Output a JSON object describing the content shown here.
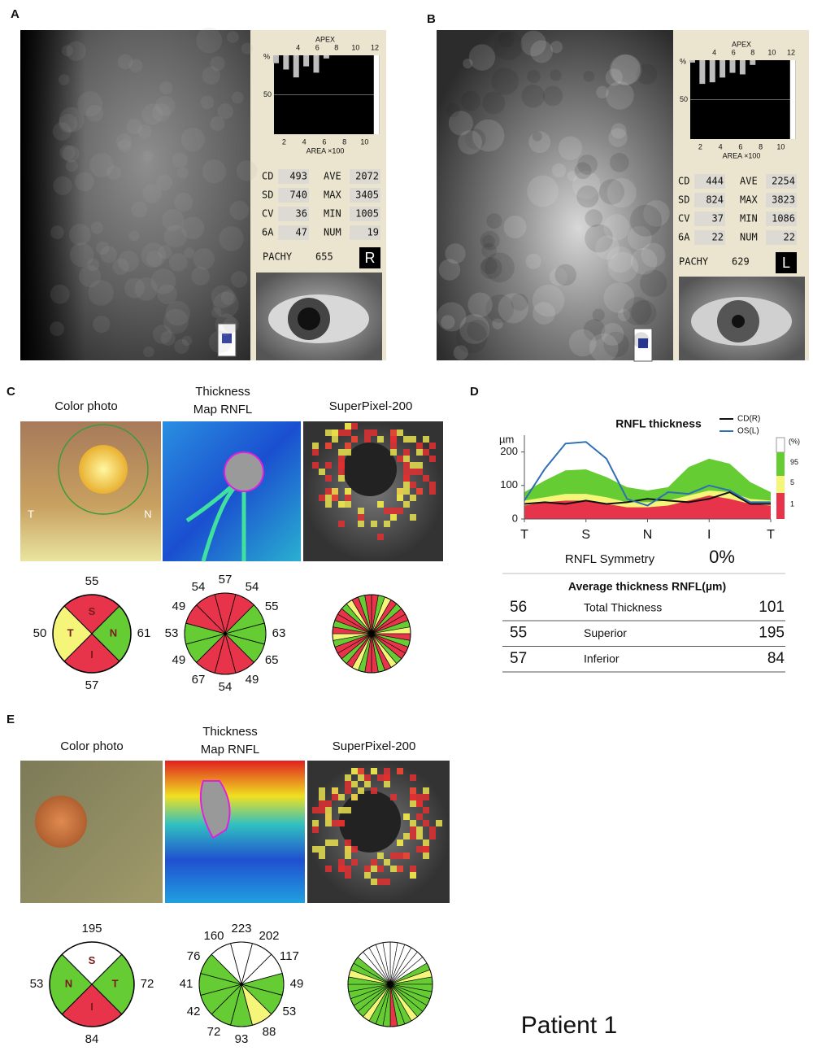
{
  "panel_a": {
    "label": "A",
    "apex": "APEX",
    "unit": "%",
    "top_xlim": [
      2,
      12
    ],
    "top_ticks": [
      4,
      6,
      8,
      10,
      12
    ],
    "bottom_xlim": [
      1,
      11.5
    ],
    "bottom_ticks": [
      2,
      4,
      6,
      8,
      10
    ],
    "area_label": "AREA ×100",
    "ylim": [
      0,
      100
    ],
    "yticks": [
      50
    ],
    "bar_color": "#bdbdbd",
    "bars": [
      10,
      18,
      28,
      14,
      22,
      4,
      0,
      0,
      0,
      0,
      100
    ],
    "stats": [
      {
        "label": "CD",
        "value": 493
      },
      {
        "label": "AVE",
        "value": 2072
      },
      {
        "label": "SD",
        "value": 740
      },
      {
        "label": "MAX",
        "value": 3405
      },
      {
        "label": "CV",
        "value": 36
      },
      {
        "label": "MIN",
        "value": 1005
      },
      {
        "label": "6A",
        "value": 47
      },
      {
        "label": "NUM",
        "value": 19
      }
    ],
    "pachy_label": "PACHY",
    "pachy": 655,
    "eye": "R"
  },
  "panel_b": {
    "label": "B",
    "apex": "APEX",
    "unit": "%",
    "top_xlim": [
      2,
      12
    ],
    "top_ticks": [
      4,
      6,
      8,
      10,
      12
    ],
    "bottom_xlim": [
      1,
      11.5
    ],
    "bottom_ticks": [
      2,
      4,
      6,
      8,
      10
    ],
    "area_label": "AREA ×100",
    "ylim": [
      0,
      100
    ],
    "yticks": [
      50
    ],
    "bar_color": "#bdbdbd",
    "bars": [
      3,
      30,
      28,
      22,
      16,
      18,
      6,
      0,
      0,
      0,
      100
    ],
    "stats": [
      {
        "label": "CD",
        "value": 444
      },
      {
        "label": "AVE",
        "value": 2254
      },
      {
        "label": "SD",
        "value": 824
      },
      {
        "label": "MAX",
        "value": 3823
      },
      {
        "label": "CV",
        "value": 37
      },
      {
        "label": "MIN",
        "value": 1086
      },
      {
        "label": "6A",
        "value": 22
      },
      {
        "label": "NUM",
        "value": 22
      }
    ],
    "pachy_label": "PACHY",
    "pachy": 629,
    "eye": "L"
  },
  "panel_c": {
    "label": "C",
    "headings": [
      "Color photo",
      "Thickness",
      "Map RNFL",
      "SuperPixel-200"
    ],
    "photo_labels": [
      "T",
      "N"
    ],
    "quadrant": [
      {
        "label": "S",
        "value": 55,
        "color": "#e8344b"
      },
      {
        "label": "N",
        "value": 61,
        "color": "#66cc33"
      },
      {
        "label": "I",
        "value": 57,
        "color": "#e8344b"
      },
      {
        "label": "T",
        "value": 50,
        "color": "#f5f57a"
      }
    ],
    "clock": [
      {
        "value": 57,
        "color": "#e8344b"
      },
      {
        "value": 54,
        "color": "#e8344b"
      },
      {
        "value": 55,
        "color": "#66cc33"
      },
      {
        "value": 63,
        "color": "#66cc33"
      },
      {
        "value": 65,
        "color": "#66cc33"
      },
      {
        "value": 49,
        "color": "#e8344b"
      },
      {
        "value": 54,
        "color": "#e8344b"
      },
      {
        "value": 67,
        "color": "#e8344b"
      },
      {
        "value": 49,
        "color": "#66cc33"
      },
      {
        "value": 53,
        "color": "#66cc33"
      },
      {
        "value": 49,
        "color": "#e8344b"
      },
      {
        "value": 54,
        "color": "#e8344b"
      }
    ]
  },
  "panel_d": {
    "label": "D",
    "symmetry_label": "RNFL Symmetry",
    "symmetry": "0%",
    "table_title": "Average thickness RNFL(µm)",
    "rows": [
      [
        56,
        "Total Thickness",
        101
      ],
      [
        55,
        "Superior",
        195
      ],
      [
        57,
        "Inferior",
        84
      ]
    ]
  },
  "chart_data": {
    "type": "line",
    "title": "RNFL thickness",
    "ylabel": "µm",
    "scale_label": "(%)",
    "x": [
      0,
      30,
      60,
      90,
      120,
      150,
      180,
      210,
      240,
      270,
      300,
      330,
      360
    ],
    "xlim": [
      0,
      360
    ],
    "xticks": [
      {
        "value": 0,
        "label": "T"
      },
      {
        "value": 90,
        "label": "S"
      },
      {
        "value": 180,
        "label": "N"
      },
      {
        "value": 270,
        "label": "I"
      },
      {
        "value": 360,
        "label": "T"
      }
    ],
    "ylim": [
      0,
      250
    ],
    "yticks": [
      0,
      100,
      200
    ],
    "series": [
      {
        "name": "95",
        "type": "area",
        "color": "#66cc33",
        "values": [
          80,
          115,
          145,
          148,
          125,
          95,
          85,
          95,
          155,
          180,
          165,
          110,
          80
        ]
      },
      {
        "name": "5",
        "type": "area",
        "color": "#f5f57a",
        "values": [
          55,
          65,
          75,
          75,
          65,
          50,
          50,
          55,
          70,
          85,
          80,
          60,
          55
        ]
      },
      {
        "name": "1",
        "type": "area",
        "color": "#e8344b",
        "values": [
          40,
          50,
          55,
          55,
          45,
          35,
          35,
          40,
          55,
          70,
          60,
          45,
          40
        ]
      },
      {
        "name": "CD(R)",
        "type": "line",
        "color": "#111111",
        "values": [
          45,
          50,
          45,
          55,
          45,
          50,
          60,
          55,
          50,
          60,
          80,
          45,
          45
        ]
      },
      {
        "name": "OS(L)",
        "type": "line",
        "color": "#2f6fb3",
        "values": [
          55,
          150,
          225,
          230,
          180,
          60,
          40,
          80,
          75,
          100,
          85,
          50,
          50
        ]
      }
    ]
  },
  "panel_e": {
    "label": "E",
    "headings": [
      "Color photo",
      "Thickness",
      "Map RNFL",
      "SuperPixel-200"
    ],
    "quadrant": [
      {
        "label": "S",
        "value": 195,
        "color": "#ffffff"
      },
      {
        "label": "T",
        "value": 72,
        "color": "#66cc33"
      },
      {
        "label": "I",
        "value": 84,
        "color": "#e8344b"
      },
      {
        "label": "N",
        "value": 53,
        "color": "#66cc33"
      }
    ],
    "clock": [
      {
        "value": 223,
        "color": "#ffffff"
      },
      {
        "value": 202,
        "color": "#ffffff"
      },
      {
        "value": 117,
        "color": "#ffffff"
      },
      {
        "value": 49,
        "color": "#66cc33"
      },
      {
        "value": 53,
        "color": "#66cc33"
      },
      {
        "value": 88,
        "color": "#f5f57a"
      },
      {
        "value": 93,
        "color": "#66cc33"
      },
      {
        "value": 72,
        "color": "#66cc33"
      },
      {
        "value": 42,
        "color": "#66cc33"
      },
      {
        "value": 41,
        "color": "#66cc33"
      },
      {
        "value": 76,
        "color": "#66cc33"
      },
      {
        "value": 160,
        "color": "#ffffff"
      }
    ]
  },
  "footer": "Patient 1"
}
